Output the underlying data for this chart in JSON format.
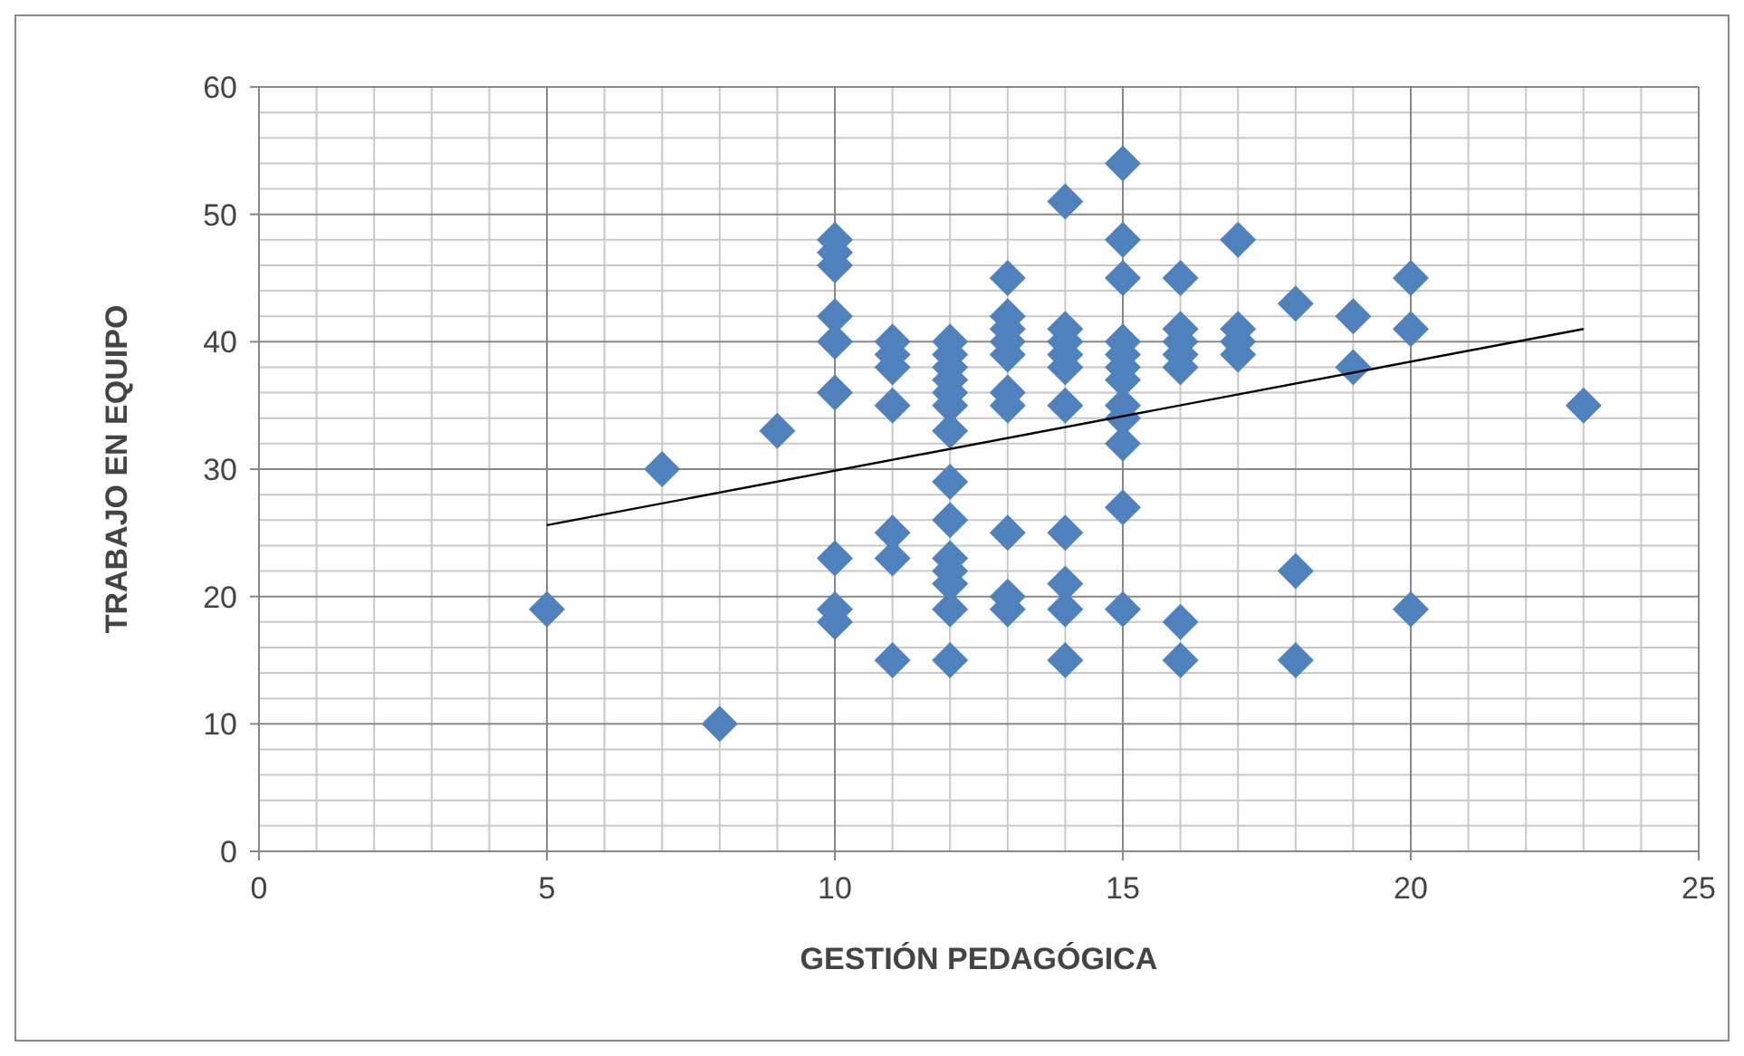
{
  "chart_data": {
    "type": "scatter",
    "xlabel": "GESTIÓN PEDAGÓGICA",
    "ylabel": "TRABAJO EN EQUIPO",
    "xlim": [
      0,
      25
    ],
    "ylim": [
      0,
      60
    ],
    "xticks": [
      0,
      5,
      10,
      15,
      20,
      25
    ],
    "yticks": [
      0,
      10,
      20,
      30,
      40,
      50,
      60
    ],
    "grid": true,
    "series": [
      {
        "color": "#4f81bd",
        "marker": "diamond",
        "x": [
          5,
          7,
          8,
          9,
          10,
          10,
          10,
          10,
          10,
          10,
          10,
          10,
          10,
          11,
          11,
          11,
          11,
          11,
          11,
          11,
          12,
          12,
          12,
          12,
          12,
          12,
          12,
          12,
          12,
          12,
          12,
          12,
          12,
          12,
          13,
          13,
          13,
          13,
          13,
          13,
          13,
          13,
          13,
          13,
          14,
          14,
          14,
          14,
          14,
          14,
          14,
          14,
          14,
          14,
          15,
          15,
          15,
          15,
          15,
          15,
          15,
          15,
          15,
          15,
          15,
          15,
          16,
          16,
          16,
          16,
          16,
          16,
          16,
          17,
          17,
          17,
          17,
          18,
          18,
          18,
          19,
          19,
          20,
          20,
          20,
          23
        ],
        "values": [
          19,
          30,
          10,
          33,
          48,
          47,
          46,
          42,
          40,
          36,
          23,
          19,
          18,
          40,
          39,
          38,
          35,
          25,
          23,
          15,
          40,
          39,
          38,
          37,
          36,
          35,
          33,
          29,
          26,
          23,
          22,
          21,
          19,
          15,
          45,
          42,
          41,
          40,
          39,
          36,
          35,
          25,
          20,
          19,
          51,
          41,
          40,
          39,
          38,
          35,
          25,
          21,
          19,
          15,
          54,
          48,
          45,
          40,
          39,
          38,
          37,
          35,
          34,
          32,
          27,
          19,
          45,
          41,
          40,
          39,
          38,
          18,
          15,
          48,
          41,
          40,
          39,
          43,
          22,
          15,
          42,
          38,
          45,
          41,
          19,
          35
        ]
      },
      {
        "type": "line",
        "color": "#000000",
        "marker": "none",
        "x": [
          5,
          23
        ],
        "values": [
          25.6,
          41
        ]
      }
    ]
  }
}
